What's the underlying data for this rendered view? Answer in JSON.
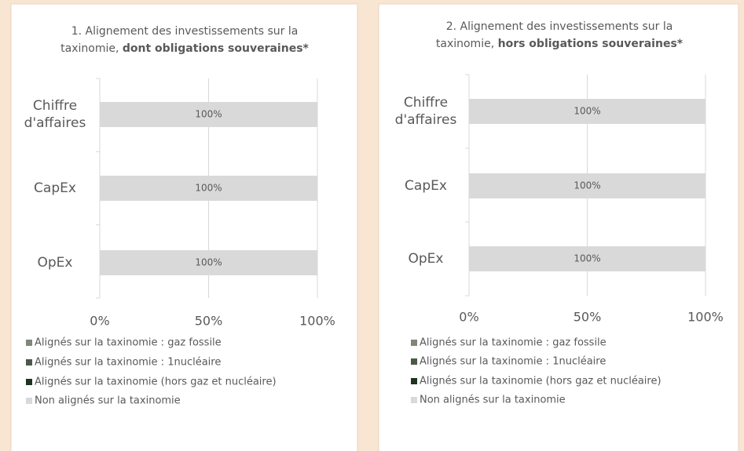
{
  "chart_data": [
    {
      "type": "stacked_barh",
      "title": [
        "1. Alignement des investissements sur la",
        "taxinomie,",
        "dont obligations souveraines*"
      ],
      "categories": [
        "Chiffre d'affaires",
        "CapEx",
        "OpEx"
      ],
      "series": [
        {
          "name": "Alignés sur la taxinomie : gaz fossile",
          "color": "#7f8877",
          "values": [
            0,
            0,
            0
          ]
        },
        {
          "name": "Alignés sur la taxinomie : 1nucléaire",
          "color": "#4b5a47",
          "values": [
            0,
            0,
            0
          ]
        },
        {
          "name": "Alignés sur la taxinomie (hors gaz et nucléaire)",
          "color": "#1e3320",
          "values": [
            0,
            0,
            0
          ]
        },
        {
          "name": "Non alignés sur la taxinomie",
          "color": "#d9d9d9",
          "values": [
            100,
            100,
            100
          ],
          "value_labels": [
            "100%",
            "100%",
            "100%"
          ]
        }
      ],
      "xlim": [
        0,
        100
      ],
      "xticks": [
        {
          "value": 0,
          "label": "0%"
        },
        {
          "value": 50,
          "label": "50%"
        },
        {
          "value": 100,
          "label": "100%"
        }
      ],
      "legend": "bottom"
    },
    {
      "type": "stacked_barh",
      "title": [
        "2. Alignement des investissements sur la",
        "taxinomie,",
        "hors obligations souveraines*"
      ],
      "categories": [
        "Chiffre d'affaires",
        "CapEx",
        "OpEx"
      ],
      "series": [
        {
          "name": "Alignés sur la taxinomie : gaz fossile",
          "color": "#7f8877",
          "values": [
            0,
            0,
            0
          ]
        },
        {
          "name": "Alignés sur la taxinomie : 1nucléaire",
          "color": "#4b5a47",
          "values": [
            0,
            0,
            0
          ]
        },
        {
          "name": "Alignés sur la taxinomie (hors gaz et nucléaire)",
          "color": "#1e3320",
          "values": [
            0,
            0,
            0
          ]
        },
        {
          "name": "Non alignés sur la taxinomie",
          "color": "#d9d9d9",
          "values": [
            100,
            100,
            100
          ],
          "value_labels": [
            "100%",
            "100%",
            "100%"
          ]
        }
      ],
      "xlim": [
        0,
        100
      ],
      "xticks": [
        {
          "value": 0,
          "label": "0%"
        },
        {
          "value": 50,
          "label": "50%"
        },
        {
          "value": 100,
          "label": "100%"
        }
      ],
      "legend": "bottom"
    }
  ]
}
